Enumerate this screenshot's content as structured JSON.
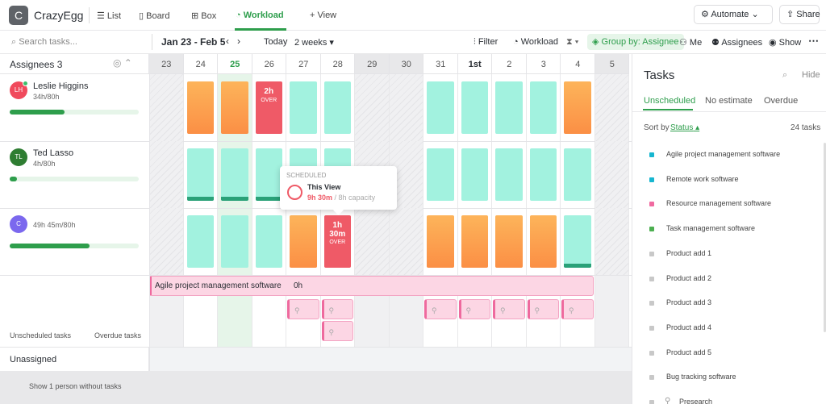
{
  "header": {
    "logo": "C",
    "workspace": "CrazyEgg",
    "tabs": [
      "List",
      "Board",
      "Box",
      "Workload"
    ],
    "add_view": "View",
    "automate": "Automate",
    "share": "Share"
  },
  "toolbar": {
    "search": "Search tasks...",
    "range": "Jan 23 - Feb 5",
    "today": "Today",
    "span": "2 weeks",
    "filter": "Filter",
    "workload": "Workload",
    "group_by": "Group by: Assignee",
    "me": "Me",
    "assignees": "Assignees",
    "show": "Show"
  },
  "grid": {
    "assignees_label": "Assignees 3",
    "days": [
      "23",
      "24",
      "25",
      "26",
      "27",
      "28",
      "29",
      "30",
      "31",
      "1st",
      "2",
      "3",
      "4",
      "5"
    ],
    "people": [
      {
        "initials": "LH",
        "name": "Leslie Higgins",
        "hours": "34h/80h",
        "avatar": "#f04a5c",
        "cells": [
          null,
          {
            "color": "#fd9f4a"
          },
          {
            "color": "#fd9f4a"
          },
          {
            "color": "#ef5a67",
            "text": "2h",
            "sub": "OVER"
          },
          {
            "color": "#a2f2df"
          },
          {
            "color": "#a2f2df"
          },
          null,
          null,
          {
            "color": "#a2f2df"
          },
          {
            "color": "#a2f2df"
          },
          {
            "color": "#a2f2df"
          },
          {
            "color": "#a2f2df"
          },
          {
            "color": "#fd9f4a"
          },
          null
        ]
      },
      {
        "initials": "TL",
        "name": "Ted Lasso",
        "hours": "4h/80h",
        "avatar": "#2e7d32",
        "cells": [
          null,
          {
            "color": "#a2f2df",
            "base": "#2aa178"
          },
          {
            "color": "#a2f2df",
            "base": "#2aa178"
          },
          {
            "color": "#a2f2df",
            "base": "#2aa178"
          },
          {
            "color": "#a2f2df"
          },
          {
            "color": "#a2f2df"
          },
          null,
          null,
          {
            "color": "#a2f2df"
          },
          {
            "color": "#a2f2df"
          },
          {
            "color": "#a2f2df"
          },
          {
            "color": "#a2f2df"
          },
          {
            "color": "#a2f2df"
          },
          null
        ]
      },
      {
        "initials": "C",
        "name": "",
        "hours": "49h 45m/80h",
        "avatar": "#7b68ee",
        "cells": [
          null,
          {
            "color": "#a2f2df"
          },
          {
            "color": "#a2f2df"
          },
          {
            "color": "#a2f2df"
          },
          {
            "color": "#fd9f4a"
          },
          {
            "color": "#ef5a67",
            "text": "1h 30m",
            "sub": "OVER"
          },
          null,
          null,
          {
            "color": "#fd9f4a"
          },
          {
            "color": "#fd9f4a"
          },
          {
            "color": "#fd9f4a"
          },
          {
            "color": "#fd9f4a"
          },
          {
            "color": "#a2f2df",
            "base": "#2aa178"
          },
          null
        ]
      }
    ],
    "task_bar": {
      "name": "Agile project management software",
      "estimate": "0h"
    },
    "unscheduled": "Unscheduled tasks",
    "overdue": "Overdue tasks",
    "unassigned": "Unassigned",
    "footer": "Show 1 person without tasks"
  },
  "tooltip": {
    "title": "SCHEDULED",
    "view": "This View",
    "hours": "9h 30m",
    "capacity": "/ 8h capacity"
  },
  "tasks_panel": {
    "title": "Tasks",
    "hide": "Hide",
    "tabs": [
      "Unscheduled",
      "No estimate",
      "Overdue"
    ],
    "sort_label": "Sort by",
    "sort_field": "Status",
    "count": "24 tasks",
    "items": [
      {
        "name": "Agile project management software",
        "color": "#17b6d0"
      },
      {
        "name": "Remote work software",
        "color": "#17b6d0"
      },
      {
        "name": "Resource management software",
        "color": "#f06aa0"
      },
      {
        "name": "Task management software",
        "color": "#4caf50"
      },
      {
        "name": "Product add 1",
        "color": "#c8c8c8"
      },
      {
        "name": "Product add 2",
        "color": "#c8c8c8"
      },
      {
        "name": "Product add 3",
        "color": "#c8c8c8"
      },
      {
        "name": "Product add 4",
        "color": "#c8c8c8"
      },
      {
        "name": "Product add 5",
        "color": "#c8c8c8"
      },
      {
        "name": "Bug tracking software",
        "color": "#c8c8c8"
      },
      {
        "name": "Presearch",
        "color": "#c8c8c8"
      }
    ]
  }
}
